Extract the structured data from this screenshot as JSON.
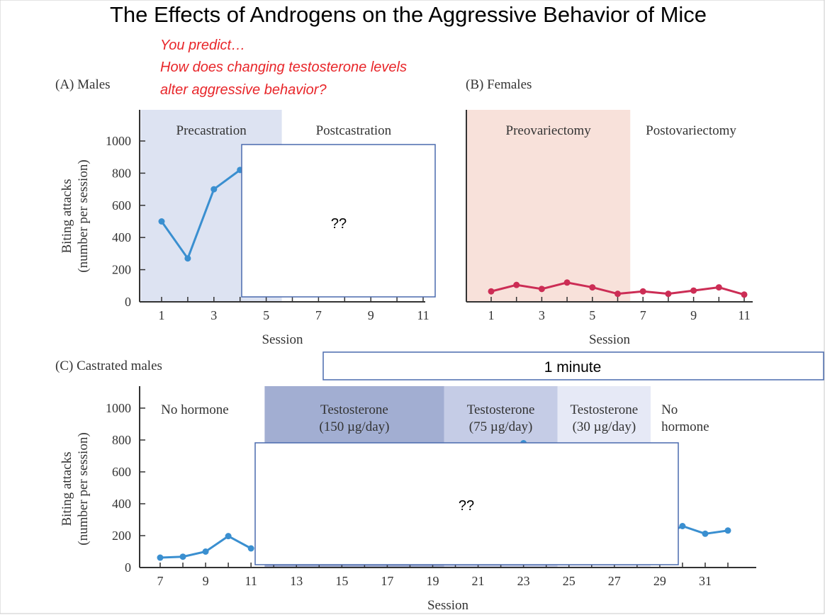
{
  "slide": {
    "title": "The Effects of Androgens on the Aggressive Behavior of Mice",
    "prompt_lines": [
      "You predict…",
      "How does changing testosterone levels",
      "alter aggressive behavior?"
    ],
    "prompt_color": "#e8262a",
    "timer_label": "1 minute",
    "hidden_label_a": "??",
    "hidden_label_c": "??"
  },
  "chart_data": [
    {
      "type": "line",
      "panel_label": "(A) Males",
      "xlabel": "Session",
      "ylabel_lines": [
        "Biting attacks",
        "(number per session)"
      ],
      "xlim": [
        1,
        11
      ],
      "ylim": [
        0,
        1000
      ],
      "x_tick_labels": [
        "1",
        "3",
        "5",
        "7",
        "9",
        "11"
      ],
      "y_tick_labels": [
        "0",
        "200",
        "400",
        "600",
        "800",
        "1000"
      ],
      "phases": [
        {
          "label": "Precastration",
          "from": 0.2,
          "to": 5.6,
          "color": "#dde3f2"
        },
        {
          "label": "Postcastration",
          "from": 5.6,
          "to": 11.2,
          "color": "#ffffff"
        }
      ],
      "series": [
        {
          "color": "#3a8fd0",
          "x": [
            1,
            2,
            3,
            4
          ],
          "values": [
            500,
            270,
            700,
            820
          ]
        }
      ]
    },
    {
      "type": "line",
      "panel_label": "(B) Females",
      "xlabel": "Session",
      "xlim": [
        1,
        11
      ],
      "ylim": [
        0,
        1000
      ],
      "x_tick_labels": [
        "1",
        "3",
        "5",
        "7",
        "9",
        "11"
      ],
      "phases": [
        {
          "label": "Preovariectomy",
          "from": 0,
          "to": 6.5,
          "color": "#f8e1da"
        },
        {
          "label": "Postovariectomy",
          "from": 6.5,
          "to": 11.3,
          "color": "#ffffff"
        }
      ],
      "series": [
        {
          "color": "#cc2d55",
          "x": [
            1,
            2,
            3,
            4,
            5,
            6,
            7,
            8,
            9,
            10,
            11
          ],
          "values": [
            65,
            105,
            80,
            120,
            90,
            50,
            65,
            50,
            70,
            90,
            45
          ]
        }
      ]
    },
    {
      "type": "line",
      "panel_label": "(C) Castrated males",
      "xlabel": "Session",
      "ylabel_lines": [
        "Biting attacks",
        "(number per session)"
      ],
      "xlim": [
        7,
        32
      ],
      "ylim": [
        0,
        1000
      ],
      "x_tick_labels": [
        "7",
        "9",
        "11",
        "13",
        "15",
        "17",
        "19",
        "21",
        "23",
        "25",
        "27",
        "29",
        "31"
      ],
      "y_tick_labels": [
        "0",
        "200",
        "400",
        "600",
        "800",
        "1000"
      ],
      "phases": [
        {
          "label_lines": [
            "No hormone"
          ],
          "from": 6.1,
          "to": 11.6,
          "color": "#ffffff"
        },
        {
          "label_lines": [
            "Testosterone",
            "(150 µg/day)"
          ],
          "from": 11.6,
          "to": 19.5,
          "color": "#a2aed2"
        },
        {
          "label_lines": [
            "Testosterone",
            "(75 µg/day)"
          ],
          "from": 19.5,
          "to": 24.5,
          "color": "#c5cce6"
        },
        {
          "label_lines": [
            "Testosterone",
            "(30 µg/day)"
          ],
          "from": 24.5,
          "to": 28.6,
          "color": "#e6e9f6"
        },
        {
          "label_lines": [
            "No",
            "hormone"
          ],
          "from": 28.6,
          "to": 32.4,
          "color": "#ffffff"
        }
      ],
      "series": [
        {
          "color": "#3a8fd0",
          "x": [
            7,
            8,
            9,
            10,
            11,
            23,
            29,
            30,
            31,
            32
          ],
          "values": [
            62,
            68,
            100,
            197,
            120,
            780,
            190,
            260,
            212,
            232
          ]
        }
      ]
    }
  ]
}
